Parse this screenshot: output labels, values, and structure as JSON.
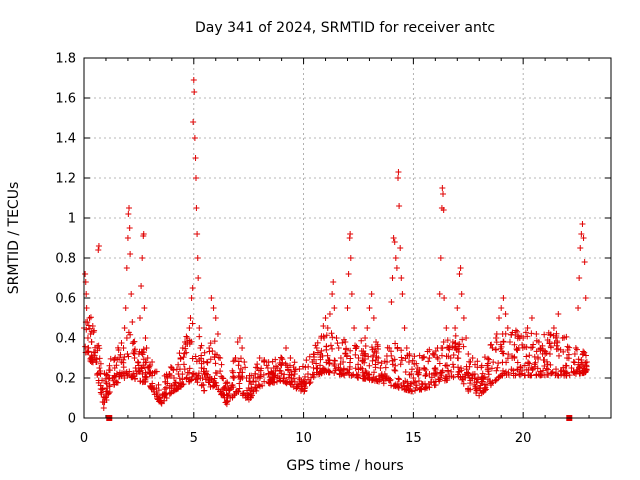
{
  "chart_data": {
    "type": "scatter",
    "title": "Day 341 of 2024, SRMTID for receiver antc",
    "xlabel": "GPS time / hours",
    "ylabel": "SRMTID / TECUs",
    "xlim": [
      0,
      24
    ],
    "ylim": [
      0,
      1.8
    ],
    "xticks": [
      0,
      5,
      10,
      15,
      20
    ],
    "xtick_labels": [
      "0",
      "5",
      "10",
      "15",
      "20"
    ],
    "yticks": [
      0,
      0.2,
      0.4,
      0.6,
      0.8,
      1.0,
      1.2,
      1.4,
      1.6,
      1.8
    ],
    "ytick_labels": [
      "0",
      "0.2",
      "0.4",
      "0.6",
      "0.8",
      "1",
      "1.2",
      "1.4",
      "1.6",
      "1.8"
    ],
    "grid": true,
    "marker_color": "#e00000",
    "series": [
      {
        "name": "SRMTID",
        "marker": "plus",
        "points": [
          [
            0.0,
            0.45
          ],
          [
            0.05,
            0.72
          ],
          [
            0.08,
            0.68
          ],
          [
            0.1,
            0.62
          ],
          [
            0.12,
            0.55
          ],
          [
            0.15,
            0.48
          ],
          [
            0.18,
            0.4
          ],
          [
            0.2,
            0.35
          ],
          [
            0.25,
            0.5
          ],
          [
            0.3,
            0.42
          ],
          [
            0.35,
            0.38
          ],
          [
            0.4,
            0.46
          ],
          [
            0.45,
            0.33
          ],
          [
            0.5,
            0.3
          ],
          [
            0.55,
            0.28
          ],
          [
            0.6,
            0.36
          ],
          [
            0.65,
            0.84
          ],
          [
            0.68,
            0.86
          ],
          [
            0.7,
            0.25
          ],
          [
            0.75,
            0.22
          ],
          [
            0.8,
            0.12
          ],
          [
            0.85,
            0.08
          ],
          [
            0.9,
            0.05
          ],
          [
            0.95,
            0.1
          ],
          [
            1.0,
            0.18
          ],
          [
            1.05,
            0.15
          ],
          [
            1.1,
            0.12
          ],
          [
            1.3,
            0.2
          ],
          [
            1.4,
            0.25
          ],
          [
            1.5,
            0.22
          ],
          [
            1.6,
            0.3
          ],
          [
            1.7,
            0.28
          ],
          [
            1.8,
            0.35
          ],
          [
            1.85,
            0.45
          ],
          [
            1.9,
            0.55
          ],
          [
            1.95,
            0.75
          ],
          [
            2.0,
            0.9
          ],
          [
            2.02,
            1.02
          ],
          [
            2.05,
            1.05
          ],
          [
            2.08,
            0.95
          ],
          [
            2.1,
            0.82
          ],
          [
            2.15,
            0.62
          ],
          [
            2.2,
            0.48
          ],
          [
            2.25,
            0.38
          ],
          [
            2.3,
            0.3
          ],
          [
            2.35,
            0.25
          ],
          [
            2.4,
            0.22
          ],
          [
            2.45,
            0.28
          ],
          [
            2.5,
            0.32
          ],
          [
            2.55,
            0.5
          ],
          [
            2.6,
            0.66
          ],
          [
            2.65,
            0.8
          ],
          [
            2.7,
            0.91
          ],
          [
            2.72,
            0.92
          ],
          [
            2.75,
            0.55
          ],
          [
            2.8,
            0.4
          ],
          [
            2.85,
            0.35
          ],
          [
            2.9,
            0.3
          ],
          [
            2.95,
            0.25
          ],
          [
            3.0,
            0.22
          ],
          [
            3.1,
            0.28
          ],
          [
            3.2,
            0.15
          ],
          [
            3.3,
            0.12
          ],
          [
            3.4,
            0.1
          ],
          [
            3.5,
            0.08
          ],
          [
            3.6,
            0.12
          ],
          [
            3.7,
            0.18
          ],
          [
            3.8,
            0.2
          ],
          [
            3.9,
            0.22
          ],
          [
            4.0,
            0.25
          ],
          [
            4.1,
            0.2
          ],
          [
            4.2,
            0.15
          ],
          [
            4.3,
            0.22
          ],
          [
            4.4,
            0.3
          ],
          [
            4.5,
            0.35
          ],
          [
            4.6,
            0.38
          ],
          [
            4.7,
            0.4
          ],
          [
            4.8,
            0.45
          ],
          [
            4.85,
            0.5
          ],
          [
            4.9,
            0.6
          ],
          [
            4.95,
            0.65
          ],
          [
            4.97,
            1.48
          ],
          [
            5.0,
            1.69
          ],
          [
            5.02,
            1.63
          ],
          [
            5.05,
            1.4
          ],
          [
            5.08,
            1.3
          ],
          [
            5.1,
            1.2
          ],
          [
            5.12,
            1.05
          ],
          [
            5.15,
            0.92
          ],
          [
            5.18,
            0.8
          ],
          [
            5.2,
            0.7
          ],
          [
            5.25,
            0.45
          ],
          [
            5.3,
            0.35
          ],
          [
            5.35,
            0.25
          ],
          [
            5.4,
            0.2
          ],
          [
            5.5,
            0.22
          ],
          [
            5.6,
            0.28
          ],
          [
            5.7,
            0.35
          ],
          [
            5.8,
            0.6
          ],
          [
            5.9,
            0.55
          ],
          [
            6.0,
            0.5
          ],
          [
            6.1,
            0.42
          ],
          [
            6.2,
            0.3
          ],
          [
            6.3,
            0.2
          ],
          [
            6.4,
            0.15
          ],
          [
            6.5,
            0.1
          ],
          [
            6.6,
            0.12
          ],
          [
            6.7,
            0.15
          ],
          [
            6.8,
            0.2
          ],
          [
            6.9,
            0.3
          ],
          [
            7.0,
            0.38
          ],
          [
            7.1,
            0.4
          ],
          [
            7.2,
            0.35
          ],
          [
            7.3,
            0.28
          ],
          [
            7.4,
            0.2
          ],
          [
            7.5,
            0.15
          ],
          [
            7.6,
            0.12
          ],
          [
            7.7,
            0.18
          ],
          [
            7.8,
            0.22
          ],
          [
            7.9,
            0.25
          ],
          [
            8.0,
            0.3
          ],
          [
            8.2,
            0.28
          ],
          [
            8.4,
            0.22
          ],
          [
            8.6,
            0.2
          ],
          [
            8.8,
            0.25
          ],
          [
            9.0,
            0.3
          ],
          [
            9.2,
            0.35
          ],
          [
            9.4,
            0.3
          ],
          [
            9.6,
            0.22
          ],
          [
            9.8,
            0.2
          ],
          [
            10.0,
            0.18
          ],
          [
            10.2,
            0.22
          ],
          [
            10.4,
            0.28
          ],
          [
            10.6,
            0.35
          ],
          [
            10.8,
            0.4
          ],
          [
            10.9,
            0.46
          ],
          [
            11.0,
            0.5
          ],
          [
            11.1,
            0.45
          ],
          [
            11.2,
            0.52
          ],
          [
            11.3,
            0.62
          ],
          [
            11.35,
            0.68
          ],
          [
            11.4,
            0.55
          ],
          [
            11.5,
            0.4
          ],
          [
            11.6,
            0.35
          ],
          [
            11.7,
            0.3
          ],
          [
            11.8,
            0.28
          ],
          [
            11.9,
            0.38
          ],
          [
            12.0,
            0.55
          ],
          [
            12.05,
            0.72
          ],
          [
            12.1,
            0.9
          ],
          [
            12.12,
            0.92
          ],
          [
            12.15,
            0.8
          ],
          [
            12.2,
            0.62
          ],
          [
            12.3,
            0.45
          ],
          [
            12.4,
            0.35
          ],
          [
            12.5,
            0.3
          ],
          [
            12.6,
            0.25
          ],
          [
            12.7,
            0.32
          ],
          [
            12.8,
            0.4
          ],
          [
            12.9,
            0.45
          ],
          [
            13.0,
            0.55
          ],
          [
            13.1,
            0.62
          ],
          [
            13.2,
            0.5
          ],
          [
            13.3,
            0.38
          ],
          [
            13.4,
            0.3
          ],
          [
            13.5,
            0.25
          ],
          [
            13.6,
            0.2
          ],
          [
            13.7,
            0.22
          ],
          [
            13.8,
            0.28
          ],
          [
            13.9,
            0.35
          ],
          [
            14.0,
            0.58
          ],
          [
            14.05,
            0.7
          ],
          [
            14.1,
            0.9
          ],
          [
            14.15,
            0.88
          ],
          [
            14.2,
            0.8
          ],
          [
            14.25,
            0.75
          ],
          [
            14.3,
            1.2
          ],
          [
            14.32,
            1.23
          ],
          [
            14.35,
            1.06
          ],
          [
            14.4,
            0.85
          ],
          [
            14.45,
            0.7
          ],
          [
            14.5,
            0.62
          ],
          [
            14.6,
            0.45
          ],
          [
            14.7,
            0.35
          ],
          [
            14.8,
            0.28
          ],
          [
            14.9,
            0.22
          ],
          [
            15.0,
            0.2
          ],
          [
            15.2,
            0.25
          ],
          [
            15.4,
            0.3
          ],
          [
            15.6,
            0.22
          ],
          [
            15.8,
            0.18
          ],
          [
            16.0,
            0.25
          ],
          [
            16.1,
            0.35
          ],
          [
            16.2,
            0.62
          ],
          [
            16.25,
            0.8
          ],
          [
            16.3,
            1.05
          ],
          [
            16.32,
            1.15
          ],
          [
            16.35,
            1.12
          ],
          [
            16.38,
            1.04
          ],
          [
            16.4,
            0.6
          ],
          [
            16.5,
            0.45
          ],
          [
            16.6,
            0.35
          ],
          [
            16.7,
            0.3
          ],
          [
            16.8,
            0.38
          ],
          [
            16.9,
            0.45
          ],
          [
            17.0,
            0.55
          ],
          [
            17.1,
            0.72
          ],
          [
            17.15,
            0.75
          ],
          [
            17.2,
            0.62
          ],
          [
            17.3,
            0.5
          ],
          [
            17.4,
            0.4
          ],
          [
            17.5,
            0.32
          ],
          [
            17.6,
            0.28
          ],
          [
            17.7,
            0.3
          ],
          [
            17.8,
            0.22
          ],
          [
            17.9,
            0.18
          ],
          [
            18.0,
            0.15
          ],
          [
            18.2,
            0.2
          ],
          [
            18.4,
            0.25
          ],
          [
            18.6,
            0.35
          ],
          [
            18.8,
            0.42
          ],
          [
            18.9,
            0.5
          ],
          [
            19.0,
            0.55
          ],
          [
            19.1,
            0.6
          ],
          [
            19.2,
            0.52
          ],
          [
            19.3,
            0.45
          ],
          [
            19.4,
            0.38
          ],
          [
            19.6,
            0.3
          ],
          [
            19.8,
            0.35
          ],
          [
            20.0,
            0.4
          ],
          [
            20.2,
            0.45
          ],
          [
            20.4,
            0.5
          ],
          [
            20.6,
            0.42
          ],
          [
            20.8,
            0.35
          ],
          [
            21.0,
            0.32
          ],
          [
            21.2,
            0.38
          ],
          [
            21.4,
            0.45
          ],
          [
            21.6,
            0.52
          ],
          [
            21.8,
            0.4
          ],
          [
            22.0,
            0.3
          ],
          [
            22.2,
            0.25
          ],
          [
            22.3,
            0.28
          ],
          [
            22.4,
            0.35
          ],
          [
            22.5,
            0.55
          ],
          [
            22.55,
            0.7
          ],
          [
            22.6,
            0.85
          ],
          [
            22.65,
            0.92
          ],
          [
            22.7,
            0.97
          ],
          [
            22.75,
            0.9
          ],
          [
            22.8,
            0.78
          ],
          [
            22.85,
            0.6
          ],
          [
            22.9,
            0.28
          ]
        ]
      }
    ],
    "noise_band": [
      [
        0.0,
        0.3,
        0.55
      ],
      [
        0.5,
        0.25,
        0.5
      ],
      [
        0.9,
        0.05,
        0.25
      ],
      [
        1.3,
        0.15,
        0.32
      ],
      [
        2.0,
        0.2,
        0.45
      ],
      [
        3.0,
        0.15,
        0.32
      ],
      [
        3.5,
        0.06,
        0.2
      ],
      [
        4.0,
        0.12,
        0.28
      ],
      [
        4.5,
        0.15,
        0.4
      ],
      [
        5.0,
        0.18,
        0.5
      ],
      [
        5.5,
        0.12,
        0.35
      ],
      [
        6.0,
        0.15,
        0.45
      ],
      [
        6.5,
        0.06,
        0.2
      ],
      [
        7.0,
        0.12,
        0.4
      ],
      [
        7.5,
        0.08,
        0.25
      ],
      [
        8.0,
        0.15,
        0.3
      ],
      [
        9.0,
        0.18,
        0.32
      ],
      [
        10.0,
        0.12,
        0.28
      ],
      [
        10.5,
        0.2,
        0.4
      ],
      [
        11.0,
        0.22,
        0.45
      ],
      [
        12.0,
        0.2,
        0.4
      ],
      [
        13.0,
        0.18,
        0.42
      ],
      [
        14.0,
        0.15,
        0.4
      ],
      [
        15.0,
        0.12,
        0.32
      ],
      [
        16.0,
        0.15,
        0.4
      ],
      [
        17.0,
        0.2,
        0.45
      ],
      [
        17.5,
        0.12,
        0.35
      ],
      [
        18.0,
        0.1,
        0.3
      ],
      [
        19.0,
        0.2,
        0.45
      ],
      [
        20.0,
        0.2,
        0.45
      ],
      [
        21.0,
        0.2,
        0.45
      ],
      [
        22.0,
        0.2,
        0.42
      ],
      [
        22.9,
        0.22,
        0.35
      ]
    ],
    "missing_data_markers": [
      {
        "x": 1.15,
        "y": 0
      },
      {
        "x": 22.1,
        "y": 0
      }
    ]
  }
}
